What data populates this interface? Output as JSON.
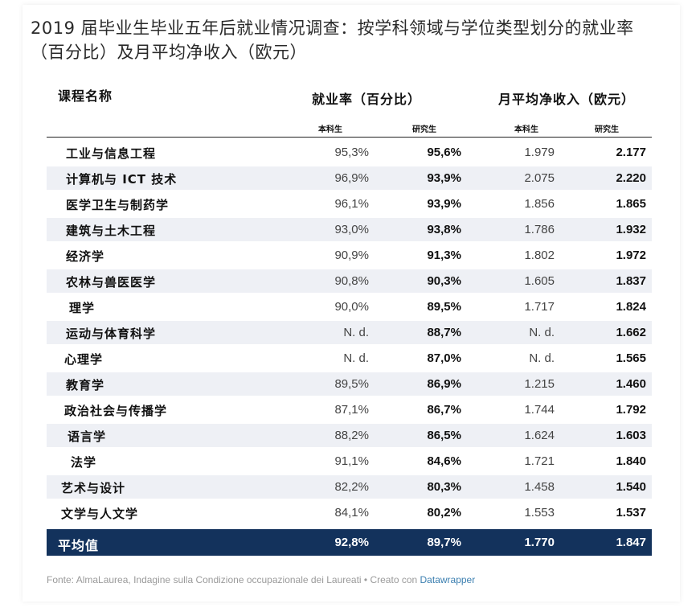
{
  "title": "2019 届毕业生毕业五年后就业情况调查：按学科领域与学位类型划分的就业率（百分比）及月平均净收入（欧元）",
  "headers": {
    "course": "课程名称",
    "employment": "就业率（百分比）",
    "income": "月平均净收入（欧元）",
    "bachelor": "本科生",
    "master": "研究生"
  },
  "source_text": "Fonte: AlmaLaurea, Indagine sulla Condizione occupazionale dei Laureati • Creato con",
  "source_link": "Datawrapper",
  "colors": {
    "stripe": "#eef0f5",
    "average_bg": "#13325c",
    "link": "#3b7fb0"
  },
  "chart_data": {
    "type": "table",
    "columns": [
      "课程名称",
      "就业率 本科生",
      "就业率 研究生",
      "月平均净收入 本科生",
      "月平均净收入 研究生"
    ],
    "rows": [
      {
        "name": "工业与信息工程",
        "emp_bachelor": "95,3%",
        "emp_master": "95,6%",
        "inc_bachelor": "1.979",
        "inc_master": "2.177"
      },
      {
        "name": "计算机与 ICT 技术",
        "emp_bachelor": "96,9%",
        "emp_master": "93,9%",
        "inc_bachelor": "2.075",
        "inc_master": "2.220"
      },
      {
        "name": "医学卫生与制药学",
        "emp_bachelor": "96,1%",
        "emp_master": "93,9%",
        "inc_bachelor": "1.856",
        "inc_master": "1.865"
      },
      {
        "name": "建筑与土木工程",
        "emp_bachelor": "93,0%",
        "emp_master": "93,8%",
        "inc_bachelor": "1.786",
        "inc_master": "1.932"
      },
      {
        "name": "经济学",
        "emp_bachelor": "90,9%",
        "emp_master": "91,3%",
        "inc_bachelor": "1.802",
        "inc_master": "1.972"
      },
      {
        "name": "农林与兽医医学",
        "emp_bachelor": "90,8%",
        "emp_master": "90,3%",
        "inc_bachelor": "1.605",
        "inc_master": "1.837"
      },
      {
        "name": "理学",
        "emp_bachelor": "90,0%",
        "emp_master": "89,5%",
        "inc_bachelor": "1.717",
        "inc_master": "1.824"
      },
      {
        "name": "运动与体育科学",
        "emp_bachelor": "N. d.",
        "emp_master": "88,7%",
        "inc_bachelor": "N. d.",
        "inc_master": "1.662"
      },
      {
        "name": "心理学",
        "emp_bachelor": "N. d.",
        "emp_master": "87,0%",
        "inc_bachelor": "N. d.",
        "inc_master": "1.565"
      },
      {
        "name": "教育学",
        "emp_bachelor": "89,5%",
        "emp_master": "86,9%",
        "inc_bachelor": "1.215",
        "inc_master": "1.460"
      },
      {
        "name": "政治社会与传播学",
        "emp_bachelor": "87,1%",
        "emp_master": "86,7%",
        "inc_bachelor": "1.744",
        "inc_master": "1.792"
      },
      {
        "name": "语言学",
        "emp_bachelor": "88,2%",
        "emp_master": "86,5%",
        "inc_bachelor": "1.624",
        "inc_master": "1.603"
      },
      {
        "name": "法学",
        "emp_bachelor": "91,1%",
        "emp_master": "84,6%",
        "inc_bachelor": "1.721",
        "inc_master": "1.840"
      },
      {
        "name": "艺术与设计",
        "emp_bachelor": "82,2%",
        "emp_master": "80,3%",
        "inc_bachelor": "1.458",
        "inc_master": "1.540"
      },
      {
        "name": "文学与人文学",
        "emp_bachelor": "84,1%",
        "emp_master": "80,2%",
        "inc_bachelor": "1.553",
        "inc_master": "1.537"
      }
    ],
    "average": {
      "name": "平均值",
      "emp_bachelor": "92,8%",
      "emp_master": "89,7%",
      "inc_bachelor": "1.770",
      "inc_master": "1.847"
    }
  }
}
